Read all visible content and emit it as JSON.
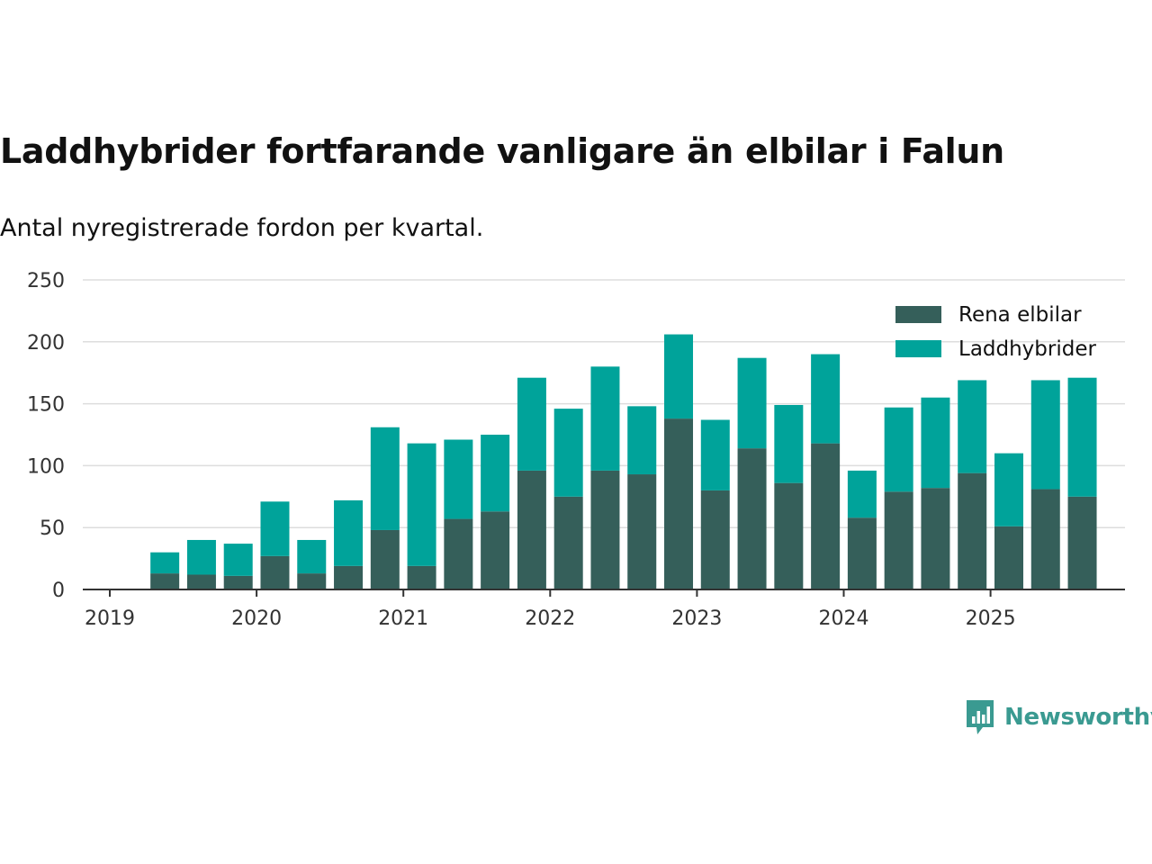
{
  "title": "Laddhybrider fortfarande vanligare än elbilar i Falun",
  "subtitle": "Antal nyregistrerade fordon per kvartal.",
  "brand": "Newsworthy",
  "colors": {
    "elbilar": "#355f5a",
    "laddhybrider": "#00a39a",
    "grid": "#dddddd",
    "axis": "#333333",
    "brand": "#3a9a91"
  },
  "chart_data": {
    "type": "bar",
    "stacked": true,
    "x_ticks": [
      "2019",
      "2020",
      "2021",
      "2022",
      "2023",
      "2024",
      "2025"
    ],
    "y_ticks": [
      0,
      50,
      100,
      150,
      200,
      250
    ],
    "ylim": [
      0,
      250
    ],
    "legend_position": "top-right",
    "grid": true,
    "categories": [
      "2019 Q2",
      "2019 Q3",
      "2019 Q4",
      "2020 Q1",
      "2020 Q2",
      "2020 Q3",
      "2020 Q4",
      "2021 Q1",
      "2021 Q2",
      "2021 Q3",
      "2021 Q4",
      "2022 Q1",
      "2022 Q2",
      "2022 Q3",
      "2022 Q4",
      "2023 Q1",
      "2023 Q2",
      "2023 Q3",
      "2023 Q4",
      "2024 Q1",
      "2024 Q2",
      "2024 Q3",
      "2024 Q4",
      "2025 Q1",
      "2025 Q2",
      "2025 Q3"
    ],
    "series": [
      {
        "name": "Rena elbilar",
        "values": [
          13,
          12,
          11,
          27,
          13,
          19,
          48,
          19,
          57,
          63,
          96,
          75,
          96,
          93,
          138,
          80,
          114,
          86,
          118,
          58,
          79,
          82,
          94,
          51,
          81,
          75
        ]
      },
      {
        "name": "Laddhybrider",
        "values": [
          17,
          28,
          26,
          44,
          27,
          53,
          83,
          99,
          64,
          62,
          75,
          71,
          84,
          55,
          68,
          57,
          73,
          63,
          72,
          38,
          68,
          73,
          75,
          59,
          88,
          96
        ]
      }
    ]
  }
}
